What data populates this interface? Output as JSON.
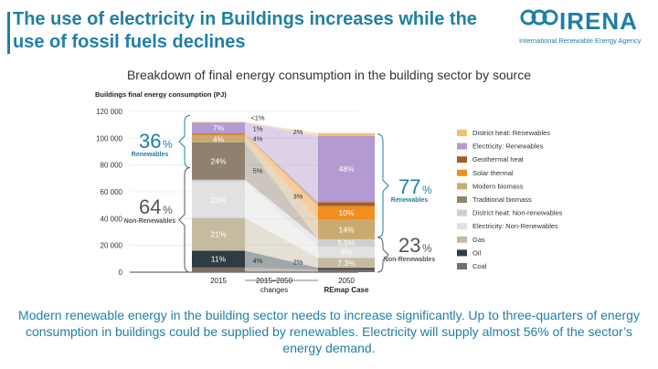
{
  "header": {
    "title": "The use of electricity in Buildings increases while the use of fossil fuels declines",
    "logo_word": "IRENA",
    "logo_sub": "International Renewable Energy Agency"
  },
  "chart_subtitle": "Breakdown of final energy consumption in the building sector by source",
  "footer": "Modern renewable energy in the building sector needs to increase significantly. Up to three-quarters of energy consumption in buildings could be supplied by renewables. Electricity will supply almost 56% of the sector’s energy demand.",
  "colors": {
    "brand": "#1f7fa6"
  },
  "chart_data": {
    "type": "bar",
    "ylabel": "Buildings final energy consumption (PJ)",
    "ylim": [
      0,
      120000
    ],
    "yticks": [
      0,
      20000,
      40000,
      60000,
      80000,
      100000,
      120000
    ],
    "ytick_labels": [
      "0",
      "20 000",
      "40 000",
      "60 000",
      "80 000",
      "100 000",
      "120 000"
    ],
    "categories": [
      "2015",
      "2015–2050 changes",
      "2050 REmap Case"
    ],
    "category_labels": [
      [
        "2015"
      ],
      [
        "2015–2050",
        "changes"
      ],
      [
        "2050",
        "REmap Case"
      ]
    ],
    "totals": [
      117000,
      null,
      103000
    ],
    "series": [
      {
        "name": "Coal",
        "color": "#7a6e66",
        "values": [
          3500,
          null,
          2000
        ],
        "labels": [
          "",
          "",
          ""
        ]
      },
      {
        "name": "Oil",
        "color": "#2f3c41",
        "values": [
          12500,
          null,
          1200
        ],
        "labels": [
          "11%",
          "4%",
          ""
        ]
      },
      {
        "name": "Gas",
        "color": "#c4bca0",
        "values": [
          24500,
          null,
          7500
        ],
        "labels": [
          "21%",
          "",
          "7.3%"
        ]
      },
      {
        "name": "Electricity: Non-Renewables",
        "color": "#e1e1e1",
        "values": [
          27000,
          null,
          8300
        ],
        "labels": [
          "23%",
          "",
          "8%"
        ]
      },
      {
        "name": "District heat: Non-renewables",
        "color": "#cfcfcf",
        "values": [
          1500,
          null,
          5600
        ],
        "labels": [
          "",
          "5%",
          "5.5%"
        ]
      },
      {
        "name": "Traditional biomass",
        "color": "#8f8170",
        "values": [
          28000,
          null,
          0
        ],
        "labels": [
          "24%",
          "",
          ""
        ]
      },
      {
        "name": "Modern biomass",
        "color": "#c9aa72",
        "values": [
          4700,
          null,
          14400
        ],
        "labels": [
          "4%",
          "",
          "14%"
        ]
      },
      {
        "name": "Solar thermal",
        "color": "#f08e20",
        "values": [
          1200,
          null,
          10300
        ],
        "labels": [
          "1%",
          "3%",
          "10%"
        ]
      },
      {
        "name": "Geothermal heat",
        "color": "#a65b24",
        "values": [
          600,
          null,
          3000
        ],
        "labels": [
          "<1%",
          "",
          ""
        ]
      },
      {
        "name": "Electricity: Renewables",
        "color": "#b39ad0",
        "values": [
          8200,
          null,
          49400
        ],
        "labels": [
          "7%",
          "",
          "48%"
        ]
      },
      {
        "name": "District heat: Renewables",
        "color": "#f4c070",
        "values": [
          500,
          null,
          2100
        ],
        "labels": [
          "",
          "2%",
          ""
        ]
      }
    ],
    "legend": {
      "placement": "right",
      "order": [
        "District heat: Renewables",
        "Electricity: Renewables",
        "Geothermal heat",
        "Solar thermal",
        "Modern biomass",
        "Traditional biomass",
        "District heat: Non-renewables",
        "Electricity: Non-Renewables",
        "Gas",
        "Oil",
        "Coal"
      ]
    },
    "annotations": [
      {
        "value": "36",
        "unit": "%",
        "label": "Renewables"
      },
      {
        "value": "64",
        "unit": "%",
        "label": "Non-Renewables"
      },
      {
        "value": "77",
        "unit": "%",
        "label": "Renewables"
      },
      {
        "value": "23",
        "unit": "%",
        "label": "Non-Renewables"
      }
    ],
    "grid": true
  }
}
